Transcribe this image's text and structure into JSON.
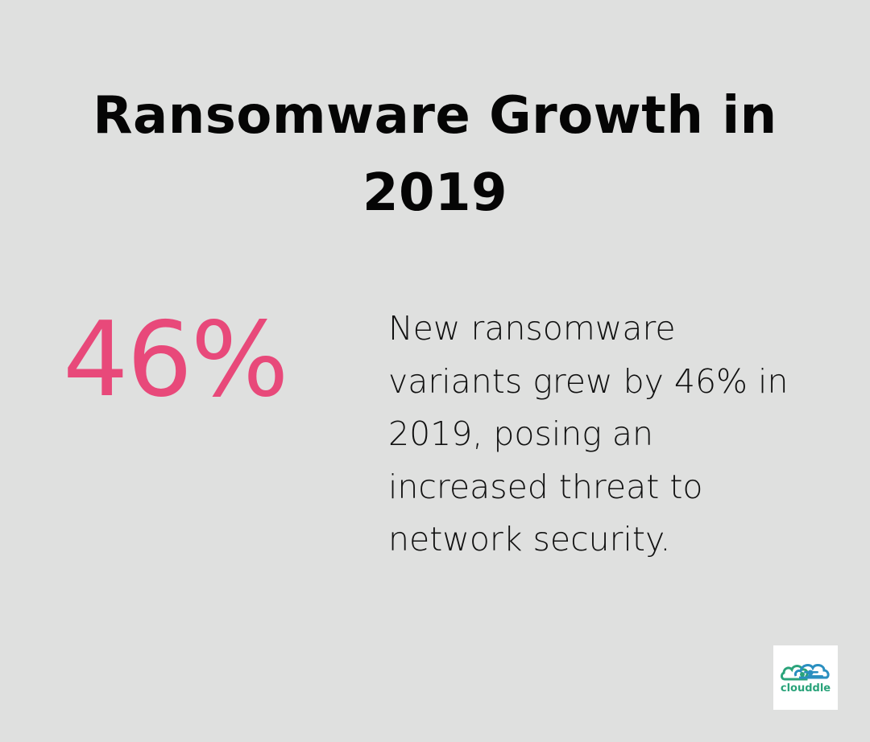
{
  "title": {
    "line1": "Ransomware Growth in",
    "line2": "2019"
  },
  "stat": {
    "value": "46%",
    "color": "#e8497a"
  },
  "description": {
    "lines": [
      "New ransomware",
      "variants grew by 46% in",
      "2019, posing an",
      "increased threat to",
      "network security."
    ]
  },
  "logo": {
    "text": "clouddle",
    "icon": "cloud-icon",
    "colors": [
      "#2a8fc0",
      "#2aa37a"
    ]
  },
  "background_color": "#dfe0df"
}
